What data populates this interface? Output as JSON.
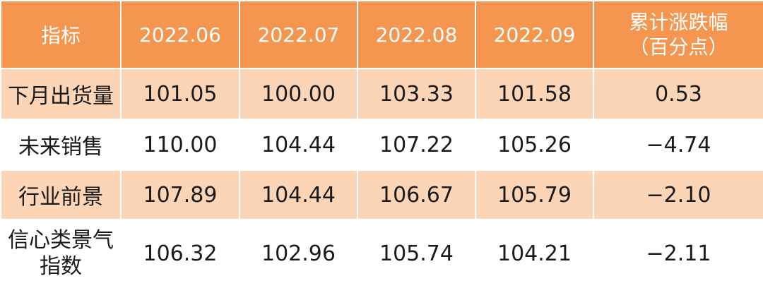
{
  "header": {
    "label": "指标",
    "months": [
      "2022.06",
      "2022.07",
      "2022.08",
      "2022.09"
    ],
    "cum_line1": "累计涨跌幅",
    "cum_line2": "（百分点）"
  },
  "rows": [
    {
      "label": "下月出货量",
      "values": [
        "101.05",
        "100.00",
        "103.33",
        "101.58"
      ],
      "cum": "0.53"
    },
    {
      "label": "未来销售",
      "values": [
        "110.00",
        "104.44",
        "107.22",
        "105.26"
      ],
      "cum": "−4.74"
    },
    {
      "label": "行业前景",
      "values": [
        "107.89",
        "104.44",
        "106.67",
        "105.79"
      ],
      "cum": "−2.10"
    },
    {
      "label_line1": "信心类景气",
      "label_line2": "指数",
      "values": [
        "106.32",
        "102.96",
        "105.74",
        "104.21"
      ],
      "cum": "−2.11"
    }
  ],
  "colors": {
    "header_bg": "#f4964f",
    "shaded_row_bg": "#fbd5b5",
    "header_text": "#ffffff"
  }
}
